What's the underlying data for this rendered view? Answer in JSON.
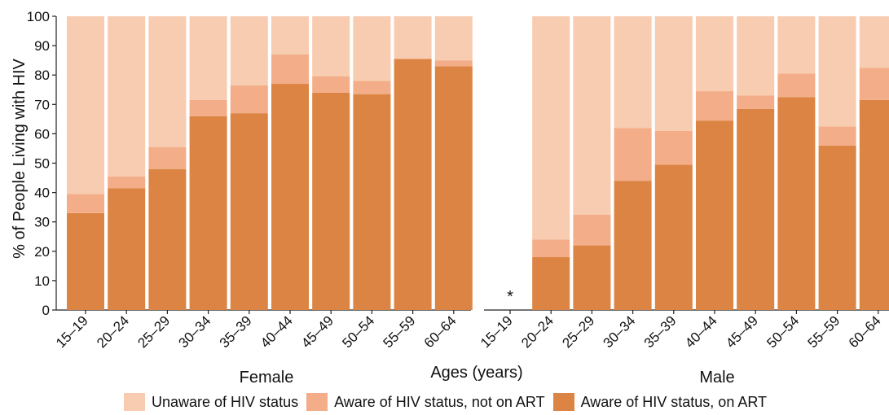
{
  "colors": {
    "unaware": "#f7ccb0",
    "aware_not_art": "#f3ad88",
    "aware_on_art": "#dc8443",
    "axis": "#222222",
    "background": "#ffffff"
  },
  "chart_data": {
    "type": "bar",
    "stacked": true,
    "ylabel": "% of People Living with HIV",
    "xlabel": "Ages (years)",
    "ylim": [
      0,
      100
    ],
    "yticks": [
      0,
      10,
      20,
      30,
      40,
      50,
      60,
      70,
      80,
      90,
      100
    ],
    "grid": false,
    "legend_position": "bottom",
    "categories": [
      "15–19",
      "20–24",
      "25–29",
      "30–34",
      "35–39",
      "40–44",
      "45–49",
      "50–54",
      "55–59",
      "60–64"
    ],
    "series_names": [
      "Unaware of HIV status",
      "Aware of HIV status, not on ART",
      "Aware of HIV status, on ART"
    ],
    "panels": [
      {
        "name": "Female",
        "suppressed_mark": "",
        "series": [
          {
            "name": "Aware of HIV status, on ART",
            "values": [
              33,
              41.5,
              48,
              66,
              67,
              77,
              74,
              73.5,
              85.5,
              83
            ]
          },
          {
            "name": "Aware of HIV status, not on ART",
            "values": [
              6.5,
              4,
              7.5,
              5.5,
              9.5,
              10,
              5.5,
              4.5,
              0,
              2
            ]
          },
          {
            "name": "Unaware of HIV status",
            "values": [
              60.5,
              54.5,
              44.5,
              28.5,
              23.5,
              13,
              20.5,
              22,
              14.5,
              15
            ]
          }
        ]
      },
      {
        "name": "Male",
        "suppressed_mark": "*",
        "suppressed_index": 0,
        "series": [
          {
            "name": "Aware of HIV status, on ART",
            "values": [
              null,
              18,
              22,
              44,
              49.5,
              64.5,
              68.5,
              72.5,
              56,
              71.5
            ]
          },
          {
            "name": "Aware of HIV status, not on ART",
            "values": [
              null,
              6,
              10.5,
              18,
              11.5,
              10,
              4.5,
              8,
              6.5,
              11
            ]
          },
          {
            "name": "Unaware of HIV status",
            "values": [
              null,
              76,
              67.5,
              38,
              39,
              25.5,
              27,
              19.5,
              37.5,
              17.5
            ]
          }
        ]
      }
    ]
  }
}
